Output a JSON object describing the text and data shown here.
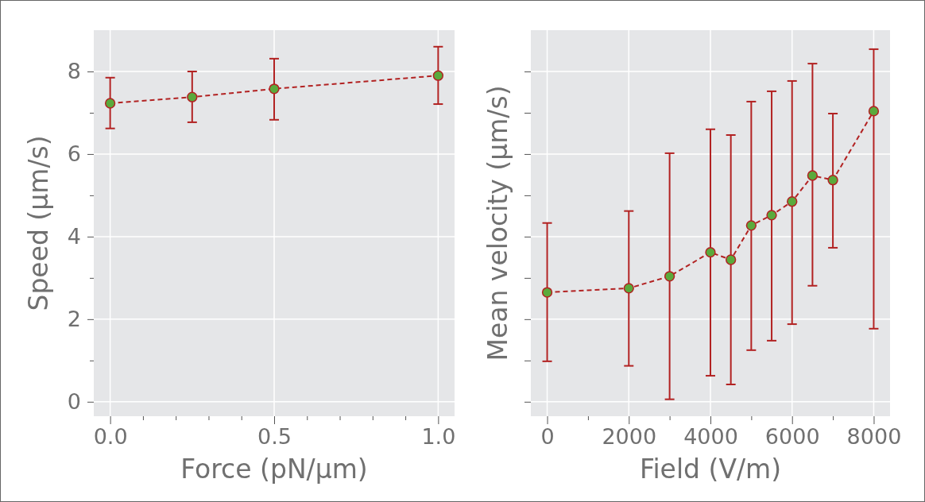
{
  "chart_data": [
    {
      "type": "line",
      "xlabel": "Force (pN/μm)",
      "ylabel": "Speed (μm/s)",
      "xlim": [
        -0.05,
        1.05
      ],
      "ylim": [
        -0.35,
        9
      ],
      "xticks": [
        {
          "value": 0,
          "label": "0.0"
        },
        {
          "value": 0.1,
          "label": null
        },
        {
          "value": 0.2,
          "label": null
        },
        {
          "value": 0.3,
          "label": null
        },
        {
          "value": 0.4,
          "label": null
        },
        {
          "value": 0.5,
          "label": "0.5"
        },
        {
          "value": 0.6,
          "label": null
        },
        {
          "value": 0.7,
          "label": null
        },
        {
          "value": 0.8,
          "label": null
        },
        {
          "value": 0.9,
          "label": null
        },
        {
          "value": 1,
          "label": "1.0"
        }
      ],
      "yticks": [
        0,
        {
          "value": 1,
          "label": null
        },
        2,
        {
          "value": 3,
          "label": null
        },
        4,
        {
          "value": 5,
          "label": null
        },
        6,
        {
          "value": 7,
          "label": null
        },
        8
      ],
      "grid": true,
      "marker": "circle",
      "line_style": "dashed",
      "series": [
        {
          "color": "#b22222",
          "colors": [
            "#5aaa3c",
            "#5aaa3c",
            "#5aaa3c",
            "#5aaa3c"
          ],
          "x": [
            0,
            0.25,
            0.5,
            1
          ],
          "values": [
            7.23,
            7.38,
            7.58,
            7.9
          ],
          "errors": [
            [
              6.62,
              7.85
            ],
            [
              6.77,
              8.0
            ],
            [
              6.83,
              8.31
            ],
            [
              7.21,
              8.6
            ]
          ]
        }
      ]
    },
    {
      "type": "line",
      "xlabel": "Field (V/m)",
      "ylabel": "Mean velocity (μm/s)",
      "xlim": [
        -400,
        8400
      ],
      "ylim": [
        -0.35,
        9
      ],
      "tick_labels": "x",
      "xticks": [
        0,
        {
          "value": 1000,
          "label": null
        },
        2000,
        {
          "value": 3000,
          "label": null
        },
        4000,
        {
          "value": 5000,
          "label": null
        },
        6000,
        {
          "value": 7000,
          "label": null
        },
        8000
      ],
      "yticks": [
        {
          "value": 0,
          "label": null
        },
        {
          "value": 1,
          "label": null
        },
        {
          "value": 2,
          "label": null
        },
        {
          "value": 3,
          "label": null
        },
        {
          "value": 4,
          "label": null
        },
        {
          "value": 5,
          "label": null
        },
        {
          "value": 6,
          "label": null
        },
        {
          "value": 7,
          "label": null
        },
        {
          "value": 8,
          "label": null
        }
      ],
      "grid": true,
      "marker": "circle",
      "line_style": "dashed",
      "series": [
        {
          "color": "#b22222",
          "colors": [
            "#5aaa3c",
            "#5aaa3c",
            "#5aaa3c",
            "#5aaa3c",
            "#5aaa3c",
            "#5aaa3c",
            "#5aaa3c",
            "#5aaa3c",
            "#5aaa3c",
            "#5aaa3c",
            "#5aaa3c"
          ],
          "x": [
            0,
            2000,
            3000,
            4000,
            4500,
            5000,
            5500,
            6000,
            6500,
            7000,
            8000
          ],
          "values": [
            2.65,
            2.75,
            3.04,
            3.62,
            3.44,
            4.27,
            4.52,
            4.85,
            5.48,
            5.37,
            7.04
          ],
          "errors": [
            [
              0.98,
              4.33
            ],
            [
              0.87,
              4.62
            ],
            [
              0.06,
              6.02
            ],
            [
              0.63,
              6.6
            ],
            [
              0.42,
              6.46
            ],
            [
              1.25,
              7.27
            ],
            [
              1.48,
              7.52
            ],
            [
              1.88,
              7.77
            ],
            [
              2.81,
              8.19
            ],
            [
              3.73,
              6.98
            ],
            [
              1.77,
              8.54
            ]
          ]
        }
      ]
    }
  ]
}
